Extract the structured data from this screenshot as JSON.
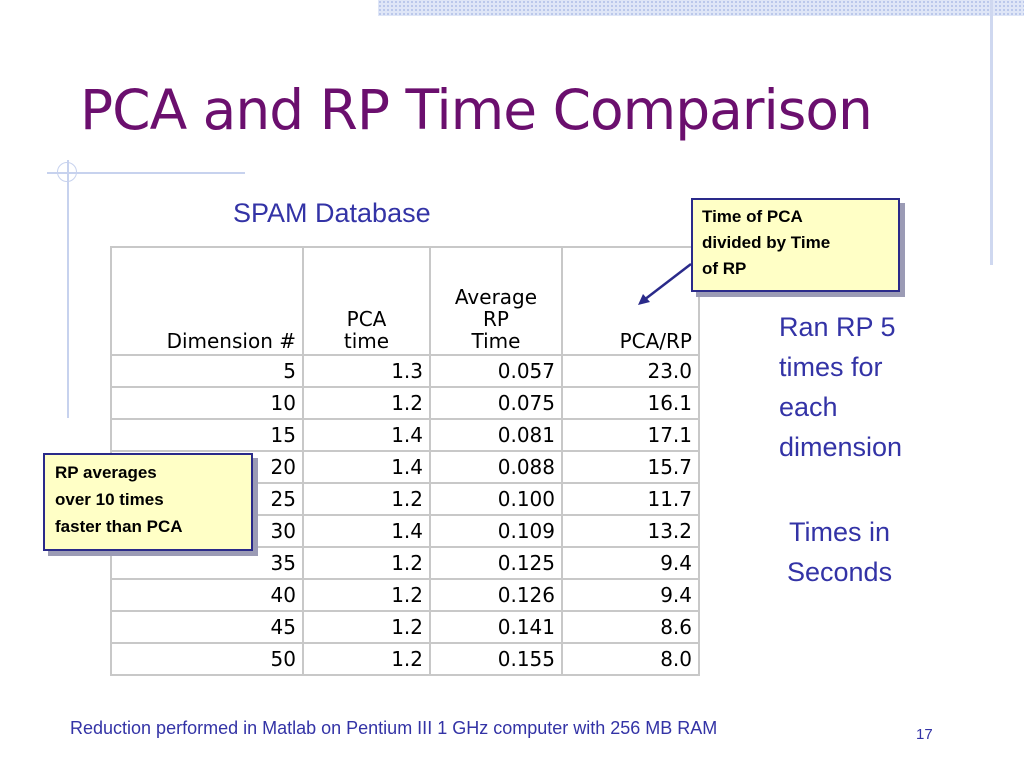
{
  "title": "PCA and RP Time Comparison",
  "subtitle": "SPAM Database",
  "table": {
    "headers": {
      "dimension": [
        "Dimension #"
      ],
      "pca_time": [
        "PCA",
        "time"
      ],
      "avg_rp_time": [
        "Average",
        "RP",
        "Time"
      ],
      "ratio": [
        "PCA/RP"
      ]
    },
    "rows": [
      [
        "5",
        "1.3",
        "0.057",
        "23.0"
      ],
      [
        "10",
        "1.2",
        "0.075",
        "16.1"
      ],
      [
        "15",
        "1.4",
        "0.081",
        "17.1"
      ],
      [
        "20",
        "1.4",
        "0.088",
        "15.7"
      ],
      [
        "25",
        "1.2",
        "0.100",
        "11.7"
      ],
      [
        "30",
        "1.4",
        "0.109",
        "13.2"
      ],
      [
        "35",
        "1.2",
        "0.125",
        "9.4"
      ],
      [
        "40",
        "1.2",
        "0.126",
        "9.4"
      ],
      [
        "45",
        "1.2",
        "0.141",
        "8.6"
      ],
      [
        "50",
        "1.2",
        "0.155",
        "8.0"
      ]
    ]
  },
  "callouts": {
    "pca_ratio": [
      "Time of PCA",
      "divided by Time",
      "of RP"
    ],
    "rp_speed": [
      "RP averages",
      "over 10 times",
      "faster than PCA"
    ]
  },
  "notes": {
    "runs": [
      "Ran RP 5",
      "times for",
      "each",
      "dimension"
    ],
    "units": [
      "Times in",
      "Seconds"
    ]
  },
  "footer": "Reduction performed in Matlab on Pentium III 1 GHz computer with 256 MB RAM",
  "page_number": "17",
  "colors": {
    "title": "#6b0f6e",
    "text_blue": "#3333a6",
    "callout_fill": "#ffffc6",
    "callout_border": "#2a2a8a"
  }
}
